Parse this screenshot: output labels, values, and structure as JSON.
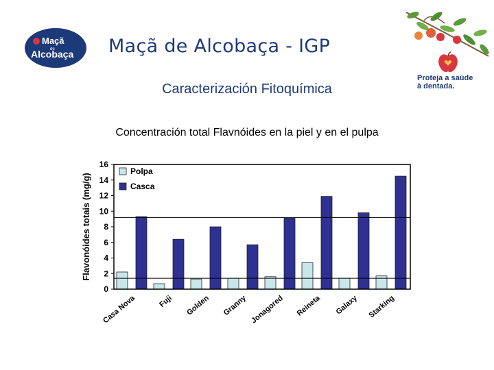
{
  "brand": {
    "logo_word1": "Maçã",
    "logo_word_small": "de",
    "logo_word2": "Alcobaça",
    "tagline_line1": "Proteja a saúde",
    "tagline_line2": "à dentada.",
    "logo_bg": "#1d3a78",
    "apple_color": "#d9363e"
  },
  "slide": {
    "title": "Maçã de Alcobaça - IGP",
    "subtitle": "Caracterización Fitoquímica"
  },
  "chart_data": {
    "type": "bar",
    "title": "Concentración total Flavnóides en la piel y en el pulpa",
    "xlabel": "",
    "ylabel": "Flavonóides totais (mg/g)",
    "ylim": [
      0,
      16
    ],
    "yticks": [
      0,
      2,
      4,
      6,
      8,
      10,
      12,
      14,
      16
    ],
    "reference_lines": [
      1.4,
      9.2
    ],
    "grid": false,
    "legend_position": "top-left",
    "categories": [
      "Casa Nova",
      "Fuji",
      "Golden",
      "Granny",
      "Jonagored",
      "Reineta",
      "Galaxy",
      "Starking"
    ],
    "series": [
      {
        "name": "Polpa",
        "color": "#c9e6ea",
        "values": [
          2.2,
          0.7,
          1.3,
          1.4,
          1.6,
          3.4,
          1.4,
          1.7
        ]
      },
      {
        "name": "Casca",
        "color": "#2e3192",
        "values": [
          9.3,
          6.4,
          8.0,
          5.7,
          9.1,
          11.9,
          9.8,
          14.5
        ]
      }
    ]
  }
}
